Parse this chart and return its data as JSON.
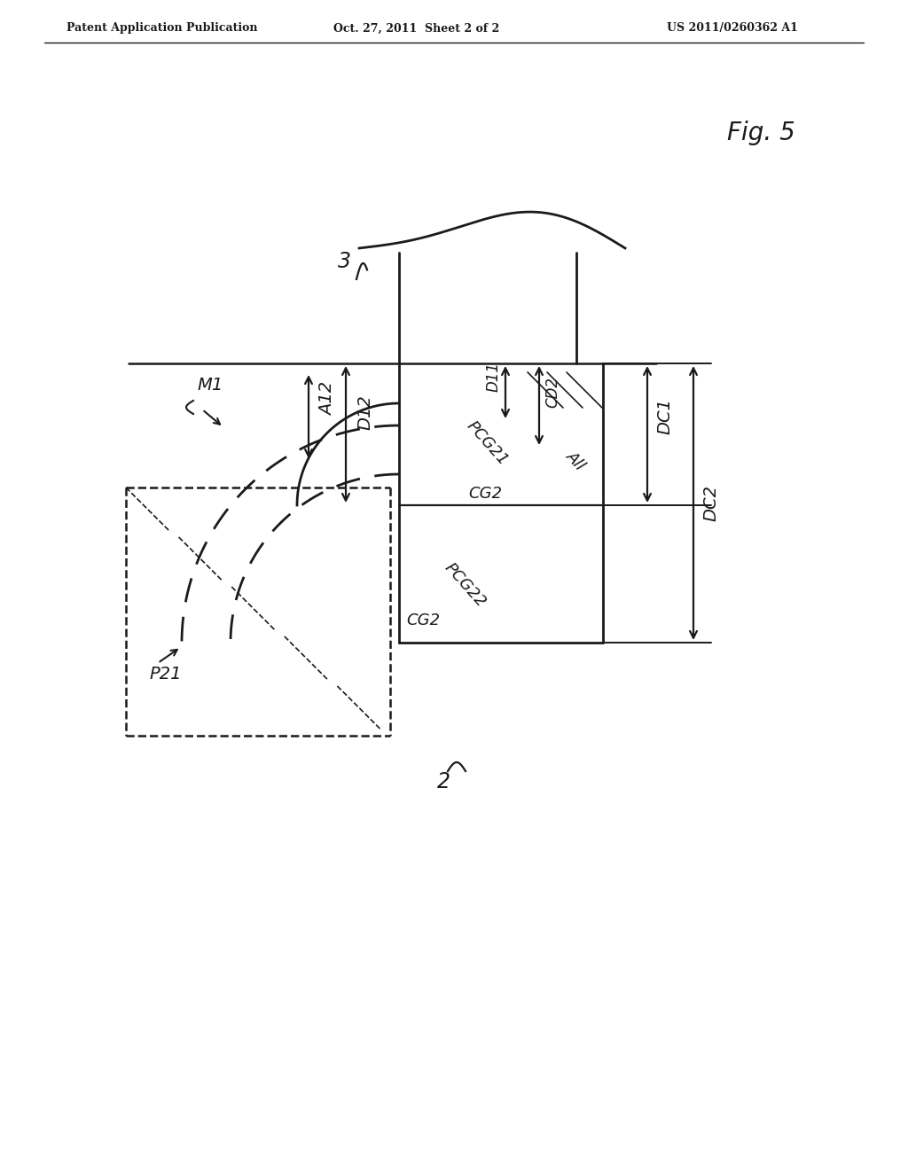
{
  "bg_color": "#ffffff",
  "line_color": "#1a1a1a",
  "header_left": "Patent Application Publication",
  "header_center": "Oct. 27, 2011  Sheet 2 of 2",
  "header_right": "US 2011/0260362 A1",
  "fig_label": "Fig. 5",
  "label_3": "3",
  "label_2": "2",
  "label_P21": "P21",
  "label_M1": "M1",
  "label_A12": "A12",
  "label_D12": "D12",
  "label_PCG21": "PCG21",
  "label_PCG22": "PCG22",
  "label_CG2_1": "CG2",
  "label_CG2_2": "CG2",
  "label_A11": "All",
  "label_D11": "D11",
  "label_CD2": "CD2",
  "label_DC1": "DC1",
  "label_DC2": "DC2"
}
